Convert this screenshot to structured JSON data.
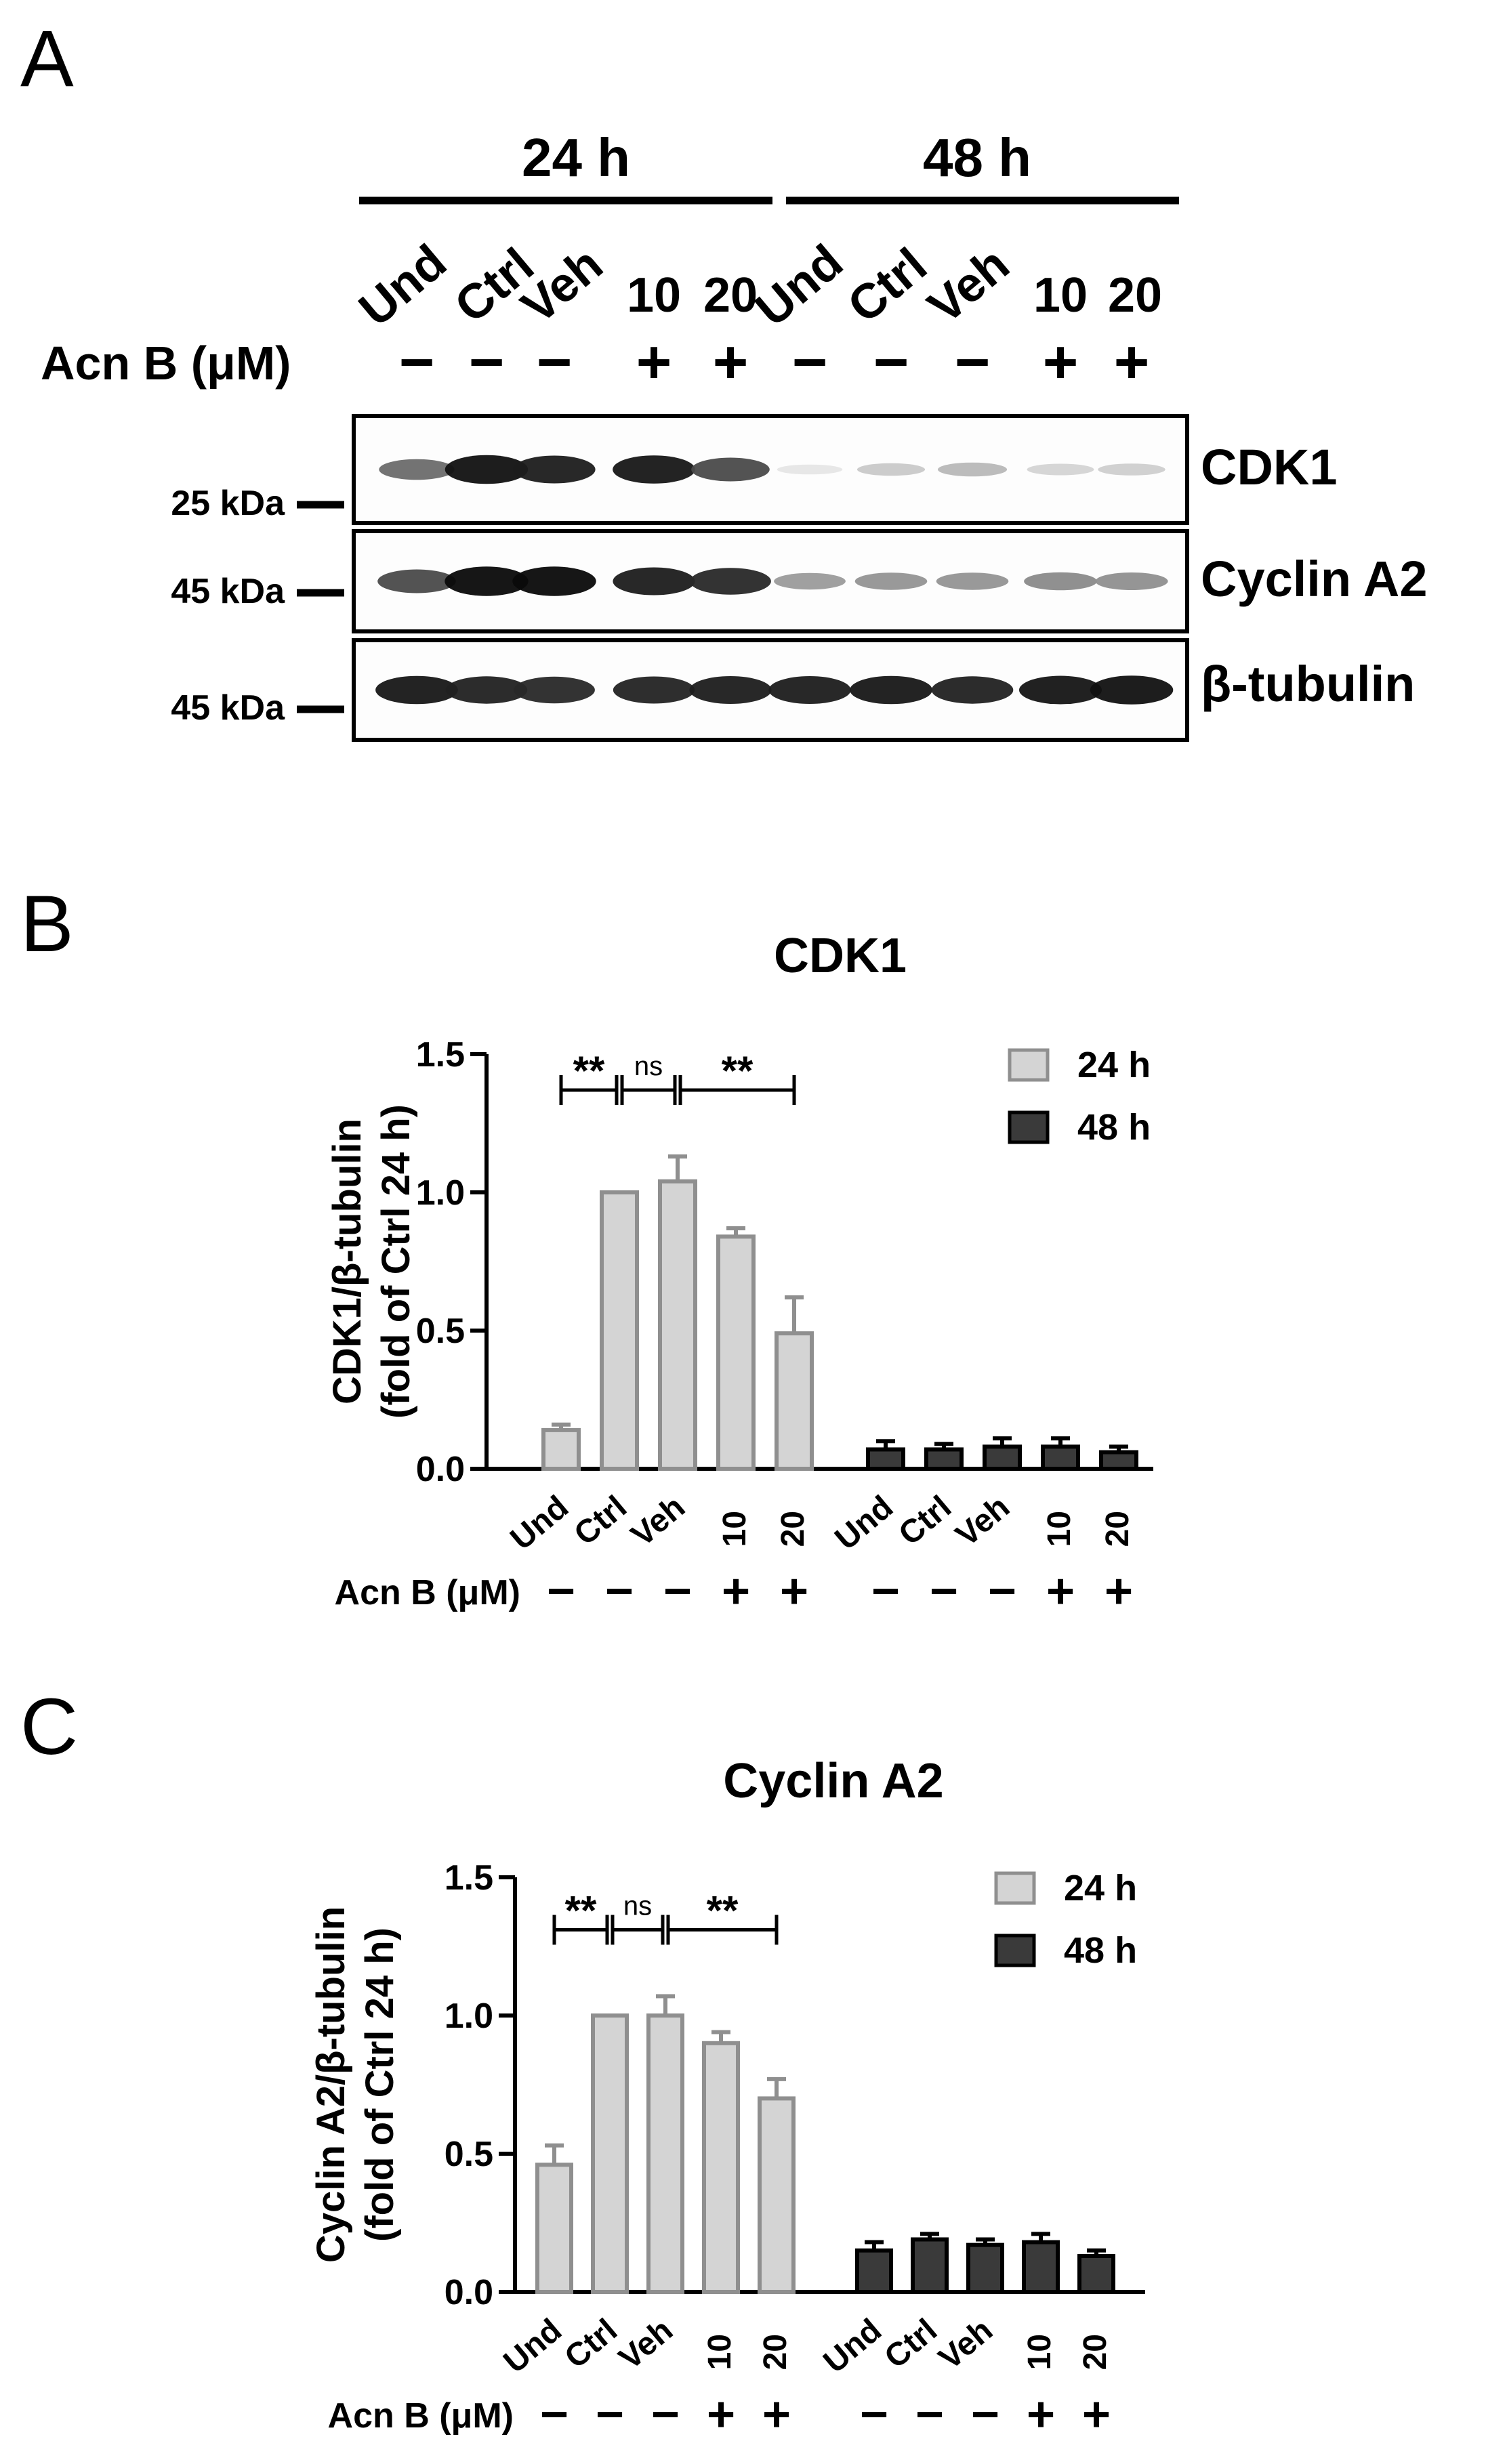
{
  "panels": {
    "a": {
      "letter": "A"
    },
    "b": {
      "letter": "B"
    },
    "c": {
      "letter": "C"
    }
  },
  "blot": {
    "time_groups": [
      "24 h",
      "48 h"
    ],
    "lanes": [
      "Und",
      "Ctrl",
      "Veh",
      "10",
      "20",
      "Und",
      "Ctrl",
      "Veh",
      "10",
      "20"
    ],
    "treatment_label": "Acn B (μM)",
    "treatment_marks": [
      "−",
      "−",
      "−",
      "+",
      "+",
      "−",
      "−",
      "−",
      "+",
      "+"
    ],
    "rows": [
      {
        "protein": "CDK1",
        "marker": "25 kDa",
        "intensity": [
          0.55,
          0.95,
          0.9,
          0.92,
          0.7,
          0.02,
          0.15,
          0.22,
          0.1,
          0.12
        ]
      },
      {
        "protein": "Cyclin A2",
        "marker": "45 kDa",
        "intensity": [
          0.7,
          0.98,
          0.98,
          0.9,
          0.85,
          0.35,
          0.38,
          0.38,
          0.42,
          0.4
        ]
      },
      {
        "protein": "β-tubulin",
        "marker": "45 kDa",
        "intensity": [
          0.92,
          0.88,
          0.85,
          0.87,
          0.9,
          0.9,
          0.92,
          0.88,
          0.93,
          0.95
        ]
      }
    ]
  },
  "chart_data": [
    {
      "type": "bar",
      "title": "CDK1",
      "ylabel": [
        "CDK1/β-tubulin",
        "(fold of Ctrl 24 h)"
      ],
      "ylim": [
        0,
        1.5
      ],
      "yticks": [
        "0.0",
        "0.5",
        "1.0",
        "1.5"
      ],
      "categories": [
        "Und",
        "Ctrl",
        "Veh",
        "10",
        "20"
      ],
      "treatment_label": "Acn B (μM)",
      "treatment_marks": [
        "−",
        "−",
        "−",
        "+",
        "+"
      ],
      "legend_position": "top-right",
      "series": [
        {
          "name": "24 h",
          "color": "#d4d4d4",
          "edge": "#8f8f8f",
          "values": [
            0.14,
            1.0,
            1.04,
            0.84,
            0.49
          ],
          "errors": [
            0.02,
            0.0,
            0.09,
            0.03,
            0.13
          ]
        },
        {
          "name": "48 h",
          "color": "#3a3a3a",
          "edge": "#000000",
          "values": [
            0.07,
            0.07,
            0.08,
            0.08,
            0.06
          ],
          "errors": [
            0.03,
            0.02,
            0.03,
            0.03,
            0.02
          ]
        }
      ],
      "significance": [
        {
          "from": 0,
          "to": 1,
          "label": "**"
        },
        {
          "from": 1,
          "to": 2,
          "label": "ns"
        },
        {
          "from": 2,
          "to": 4,
          "label": "**"
        }
      ]
    },
    {
      "type": "bar",
      "title": "Cyclin A2",
      "ylabel": [
        "Cyclin A2/β-tubulin",
        "(fold of Ctrl 24 h)"
      ],
      "ylim": [
        0,
        1.5
      ],
      "yticks": [
        "0.0",
        "0.5",
        "1.0",
        "1.5"
      ],
      "categories": [
        "Und",
        "Ctrl",
        "Veh",
        "10",
        "20"
      ],
      "treatment_label": "Acn B (μM)",
      "treatment_marks": [
        "−",
        "−",
        "−",
        "+",
        "+"
      ],
      "legend_position": "top-right",
      "series": [
        {
          "name": "24 h",
          "color": "#d4d4d4",
          "edge": "#8f8f8f",
          "values": [
            0.46,
            1.0,
            1.0,
            0.9,
            0.7
          ],
          "errors": [
            0.07,
            0.0,
            0.07,
            0.04,
            0.07
          ]
        },
        {
          "name": "48 h",
          "color": "#3a3a3a",
          "edge": "#000000",
          "values": [
            0.15,
            0.19,
            0.17,
            0.18,
            0.13
          ],
          "errors": [
            0.03,
            0.02,
            0.02,
            0.03,
            0.02
          ]
        }
      ],
      "significance": [
        {
          "from": 0,
          "to": 1,
          "label": "**"
        },
        {
          "from": 1,
          "to": 2,
          "label": "ns"
        },
        {
          "from": 2,
          "to": 4,
          "label": "**"
        }
      ]
    }
  ]
}
